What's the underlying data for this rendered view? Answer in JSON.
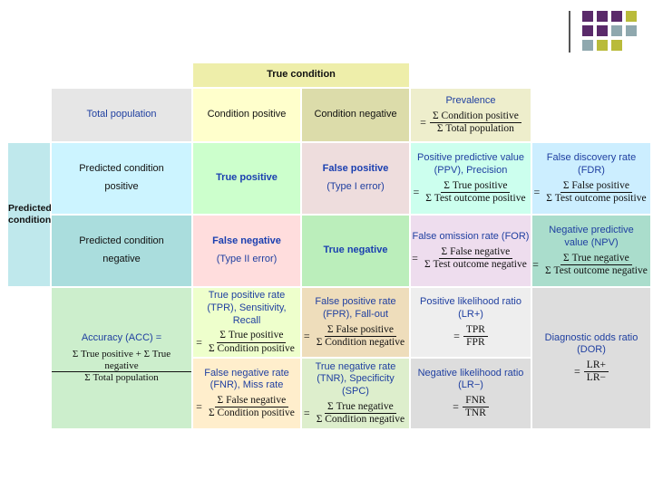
{
  "decoration": {
    "colors": [
      "#5a2a6a",
      "#8fa8ae",
      "#b9bb3a"
    ]
  },
  "header": {
    "true_condition": "True condition"
  },
  "row_header": {
    "predicted_condition": "Predicted condition"
  },
  "top": {
    "total_population": "Total population",
    "condition_positive": "Condition positive",
    "condition_negative": "Condition negative",
    "prevalence": {
      "label": "Prevalence",
      "num": "Σ Condition positive",
      "den": "Σ Total population"
    }
  },
  "row1": {
    "label": "Predicted condition positive",
    "true_positive": "True positive",
    "false_positive": "False positive",
    "false_positive_sub": "(Type I error)",
    "ppv": {
      "label": "Positive predictive value (PPV), Precision",
      "num": "Σ True positive",
      "den": "Σ Test outcome positive"
    },
    "fdr": {
      "label": "False discovery rate (FDR)",
      "num": "Σ False positive",
      "den": "Σ Test outcome positive"
    }
  },
  "row2": {
    "label": "Predicted condition negative",
    "false_negative": "False negative",
    "false_negative_sub": "(Type II error)",
    "true_negative": "True negative",
    "for": {
      "label": "False omission rate (FOR)",
      "num": "Σ False negative",
      "den": "Σ Test outcome negative"
    },
    "npv": {
      "label": "Negative predictive value (NPV)",
      "num": "Σ True negative",
      "den": "Σ Test outcome negative"
    }
  },
  "bottom": {
    "accuracy": {
      "label": "Accuracy (ACC) =",
      "num": "Σ True positive + Σ True negative",
      "den": "Σ Total population"
    },
    "tpr": {
      "label": "True positive rate (TPR), Sensitivity, Recall",
      "num": "Σ True positive",
      "den": "Σ Condition positive"
    },
    "fpr": {
      "label": "False positive rate (FPR), Fall-out",
      "num": "Σ False positive",
      "den": "Σ Condition negative"
    },
    "lr_pos": {
      "label": "Positive likelihood ratio (LR+)",
      "num": "TPR",
      "den": "FPR"
    },
    "dor": {
      "label": "Diagnostic odds ratio (DOR)",
      "num": "LR+",
      "den": "LR−"
    },
    "fnr": {
      "label": "False negative rate (FNR), Miss rate",
      "num": "Σ False negative",
      "den": "Σ Condition positive"
    },
    "tnr": {
      "label": "True negative rate (TNR), Specificity (SPC)",
      "num": "Σ True negative",
      "den": "Σ Condition negative"
    },
    "lr_neg": {
      "label": "Negative likelihood ratio (LR−)",
      "num": "FNR",
      "den": "TNR"
    }
  },
  "eq_sign": "="
}
